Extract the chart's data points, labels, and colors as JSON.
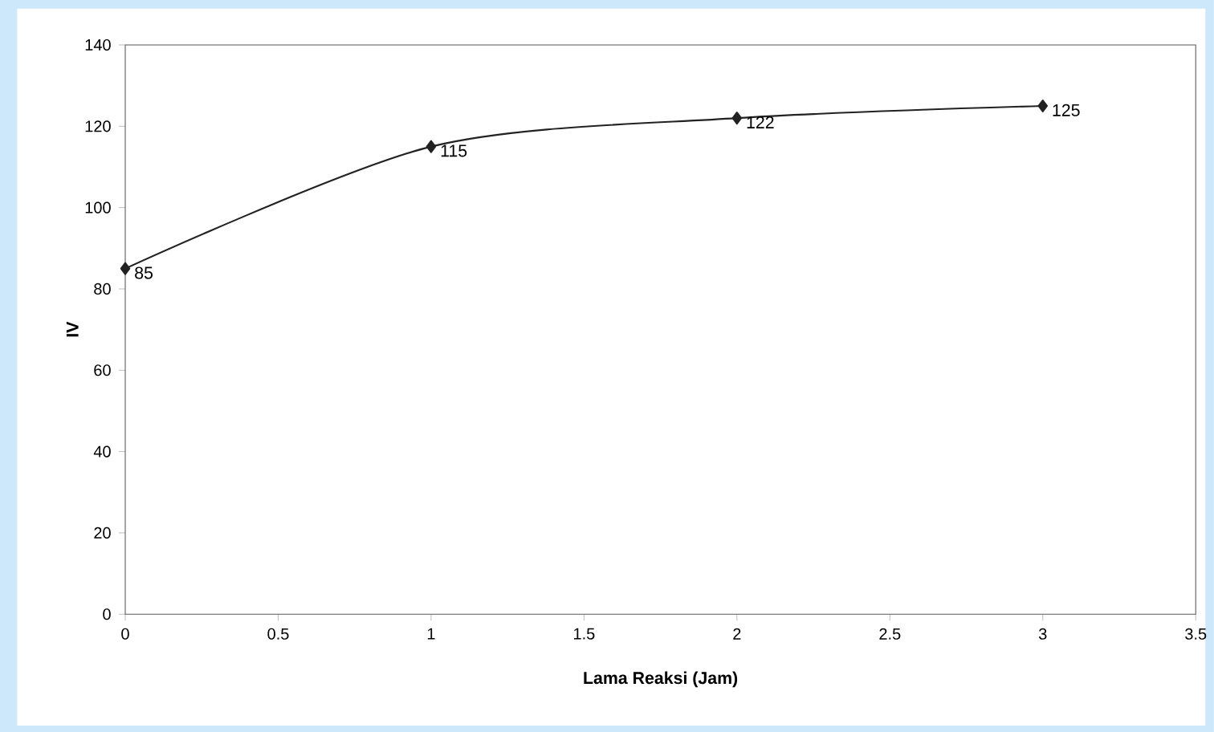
{
  "chart_data": {
    "type": "line",
    "xlabel": "Lama Reaksi (Jam)",
    "ylabel": "IV",
    "x": [
      0,
      1,
      2,
      3
    ],
    "values": [
      85,
      115,
      122,
      125
    ],
    "color": "#222222",
    "marker": "diamond",
    "data_labels": true,
    "xlim": [
      0,
      3.5
    ],
    "xticks": [
      0,
      0.5,
      1,
      1.5,
      2,
      2.5,
      3,
      3.5
    ],
    "ylim": [
      0,
      140
    ],
    "yticks": [
      0,
      20,
      40,
      60,
      80,
      100,
      120,
      140
    ]
  }
}
